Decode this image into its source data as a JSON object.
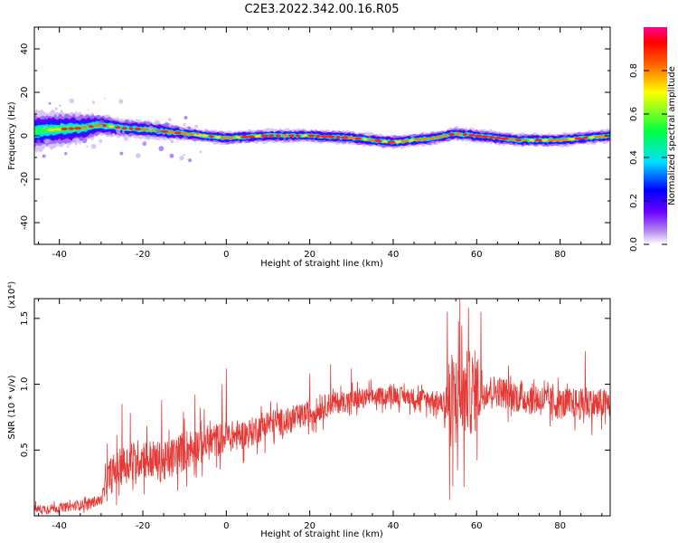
{
  "title": "C2E3.2022.342.00.16.R05",
  "chart_data": [
    {
      "type": "heatmap",
      "xlabel": "Height of straight line (km)",
      "ylabel": "Frequency (Hz)",
      "xlim": [
        -46,
        92
      ],
      "ylim": [
        -50,
        50
      ],
      "xticks": [
        -40,
        -20,
        0,
        20,
        40,
        60,
        80
      ],
      "yticks": [
        -40,
        -20,
        0,
        20,
        40
      ],
      "colorbar": {
        "label": "Normalized spectral amplitude",
        "range": [
          0,
          1
        ],
        "ticks": [
          "0.0",
          "0.2",
          "0.4",
          "0.6",
          "0.8"
        ]
      },
      "ridge": {
        "x": [
          -46,
          -40,
          -35,
          -30,
          -25,
          -20,
          -15,
          -10,
          -5,
          0,
          10,
          20,
          30,
          40,
          45,
          50,
          55,
          60,
          70,
          80,
          92
        ],
        "center_freq": [
          2,
          3,
          3.5,
          5,
          3.5,
          3,
          2,
          1,
          0,
          -1,
          0,
          0,
          -1,
          -3,
          -2,
          -1,
          1,
          0,
          -2,
          -2,
          0
        ],
        "half_width": [
          9,
          8,
          7,
          5,
          4,
          4,
          4,
          3,
          3,
          3,
          3,
          3,
          3,
          3,
          3,
          3,
          3,
          3,
          3,
          3,
          3
        ]
      }
    },
    {
      "type": "line",
      "xlabel": "Height of straight line (km)",
      "ylabel": "SNR (10 * v/v)",
      "yunit": "(x10⁴)",
      "xlim": [
        -46,
        92
      ],
      "ylim": [
        0,
        1.65
      ],
      "xticks": [
        -40,
        -20,
        0,
        20,
        40,
        60,
        80
      ],
      "yticks": [
        0.5,
        1.0,
        1.5
      ],
      "color": "#e53935",
      "trend": {
        "x": [
          -46,
          -40,
          -35,
          -30,
          -28,
          -25,
          -20,
          -15,
          -10,
          -5,
          0,
          5,
          10,
          15,
          20,
          25,
          30,
          35,
          40,
          45,
          50,
          52,
          55,
          60,
          65,
          70,
          75,
          80,
          85,
          92
        ],
        "y": [
          0.05,
          0.06,
          0.08,
          0.12,
          0.3,
          0.38,
          0.45,
          0.4,
          0.5,
          0.55,
          0.6,
          0.62,
          0.7,
          0.72,
          0.78,
          0.85,
          0.88,
          0.9,
          0.92,
          0.9,
          0.88,
          0.85,
          0.9,
          0.95,
          0.95,
          0.9,
          0.88,
          0.85,
          0.85,
          0.85
        ]
      },
      "noise_amplitude": {
        "x": [
          -46,
          -30,
          -28,
          -10,
          0,
          20,
          40,
          52,
          53,
          60,
          62,
          92
        ],
        "y": [
          0.04,
          0.05,
          0.18,
          0.2,
          0.15,
          0.12,
          0.08,
          0.1,
          0.45,
          0.4,
          0.15,
          0.15
        ]
      },
      "peaks": [
        {
          "x": -28.5,
          "y": 0.55
        },
        {
          "x": -25,
          "y": 0.85
        },
        {
          "x": -23,
          "y": 0.78
        },
        {
          "x": -15.5,
          "y": 0.88
        },
        {
          "x": -7.5,
          "y": 0.92
        },
        {
          "x": 0,
          "y": 1.12
        },
        {
          "x": -1,
          "y": 1.0
        },
        {
          "x": 20,
          "y": 1.08
        },
        {
          "x": 25,
          "y": 1.15
        },
        {
          "x": 30,
          "y": 1.12
        },
        {
          "x": 53,
          "y": 1.55
        },
        {
          "x": 56,
          "y": 1.65
        },
        {
          "x": 58,
          "y": 1.58
        },
        {
          "x": 61,
          "y": 1.55
        },
        {
          "x": 86,
          "y": 1.25
        },
        {
          "x": 53.5,
          "y": 0.12
        },
        {
          "x": 57,
          "y": 0.22
        }
      ]
    }
  ]
}
